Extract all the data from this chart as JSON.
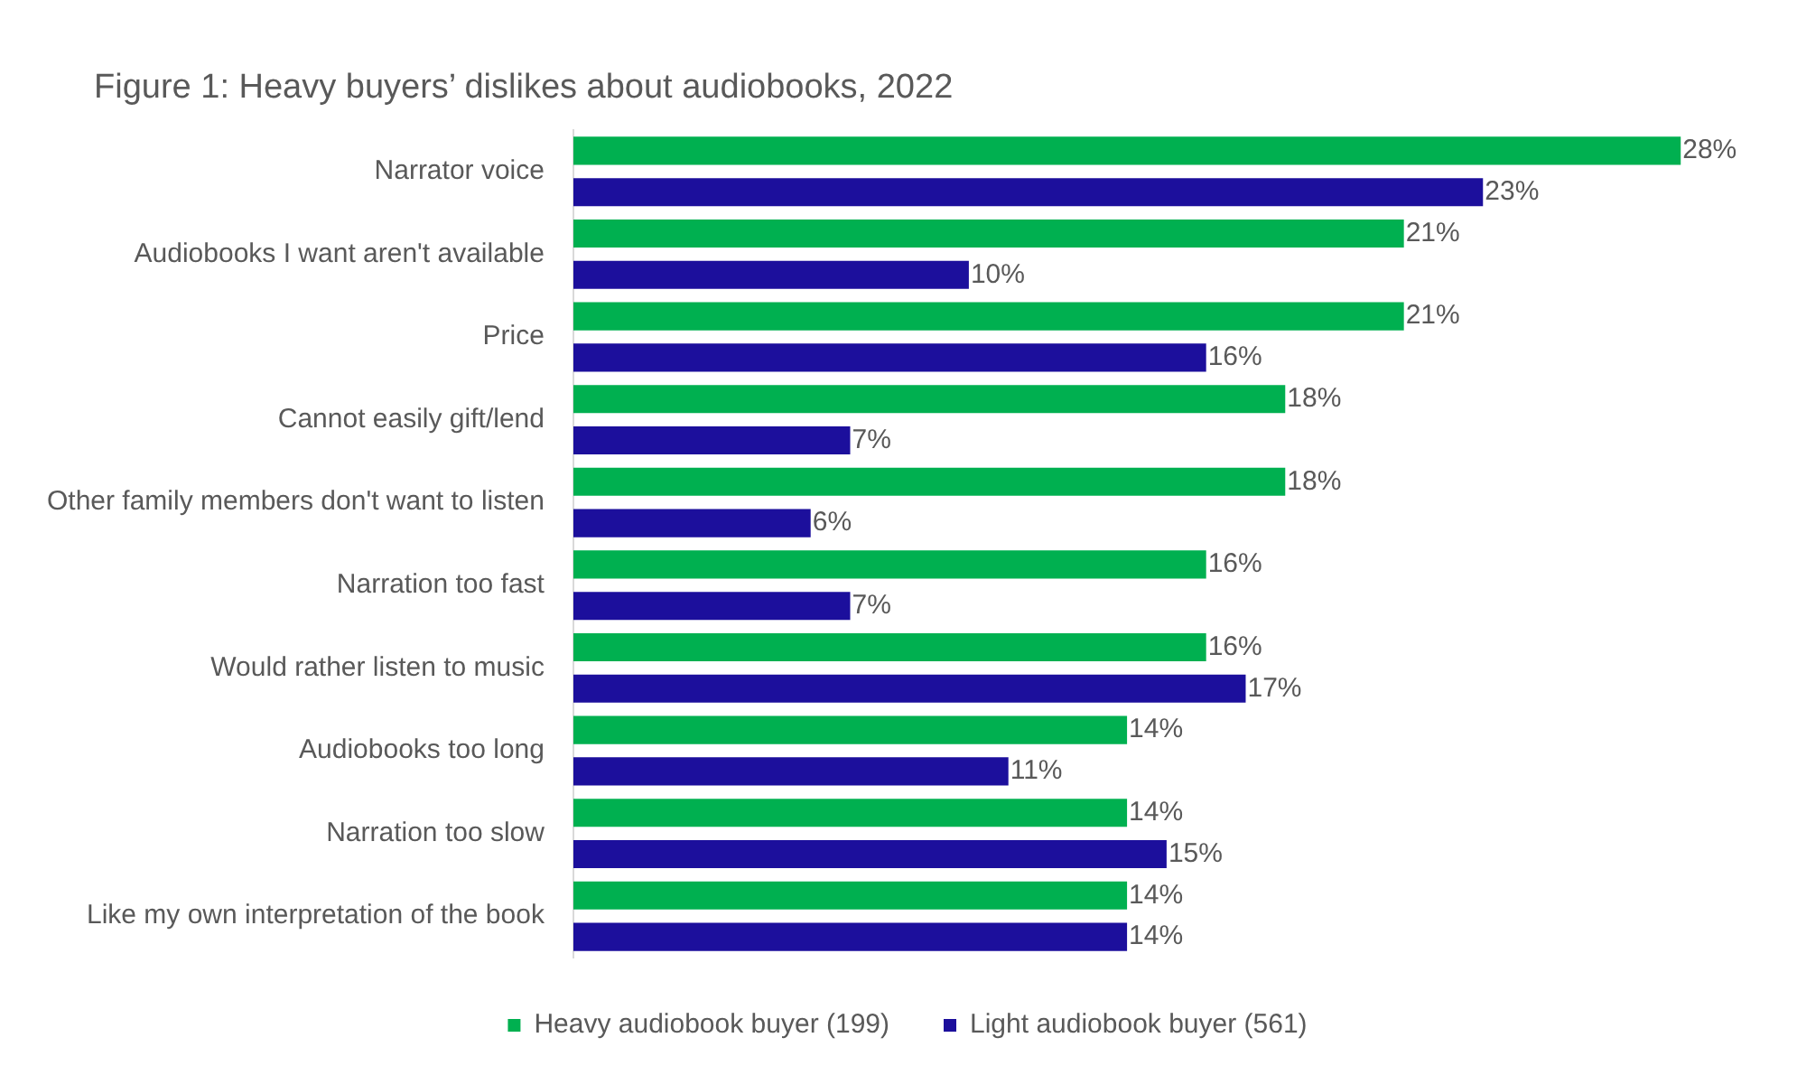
{
  "chart_data": {
    "type": "bar",
    "orientation": "horizontal",
    "title": "Figure 1: Heavy buyers’ dislikes about audiobooks, 2022",
    "categories": [
      "Narrator voice",
      "Audiobooks I want aren't available",
      "Price",
      "Cannot easily gift/lend",
      "Other family members don't want to listen",
      "Narration too fast",
      "Would rather listen to music",
      "Audiobooks too long",
      "Narration too slow",
      "Like my own interpretation of the book"
    ],
    "series": [
      {
        "name": "Heavy audiobook buyer (199)",
        "color": "#00b050",
        "values": [
          28,
          21,
          21,
          18,
          18,
          16,
          16,
          14,
          14,
          14
        ],
        "value_labels": [
          "28%",
          "21%",
          "21%",
          "18%",
          "18%",
          "16%",
          "16%",
          "14%",
          "14%",
          "14%"
        ]
      },
      {
        "name": "Light audiobook buyer (561)",
        "color": "#1c0f9c",
        "values": [
          23,
          10,
          16,
          7,
          6,
          7,
          17,
          11,
          15,
          14
        ],
        "value_labels": [
          "23%",
          "10%",
          "16%",
          "7%",
          "6%",
          "7%",
          "17%",
          "11%",
          "15%",
          "14%"
        ]
      }
    ],
    "legend": "bottom",
    "grid": false
  }
}
